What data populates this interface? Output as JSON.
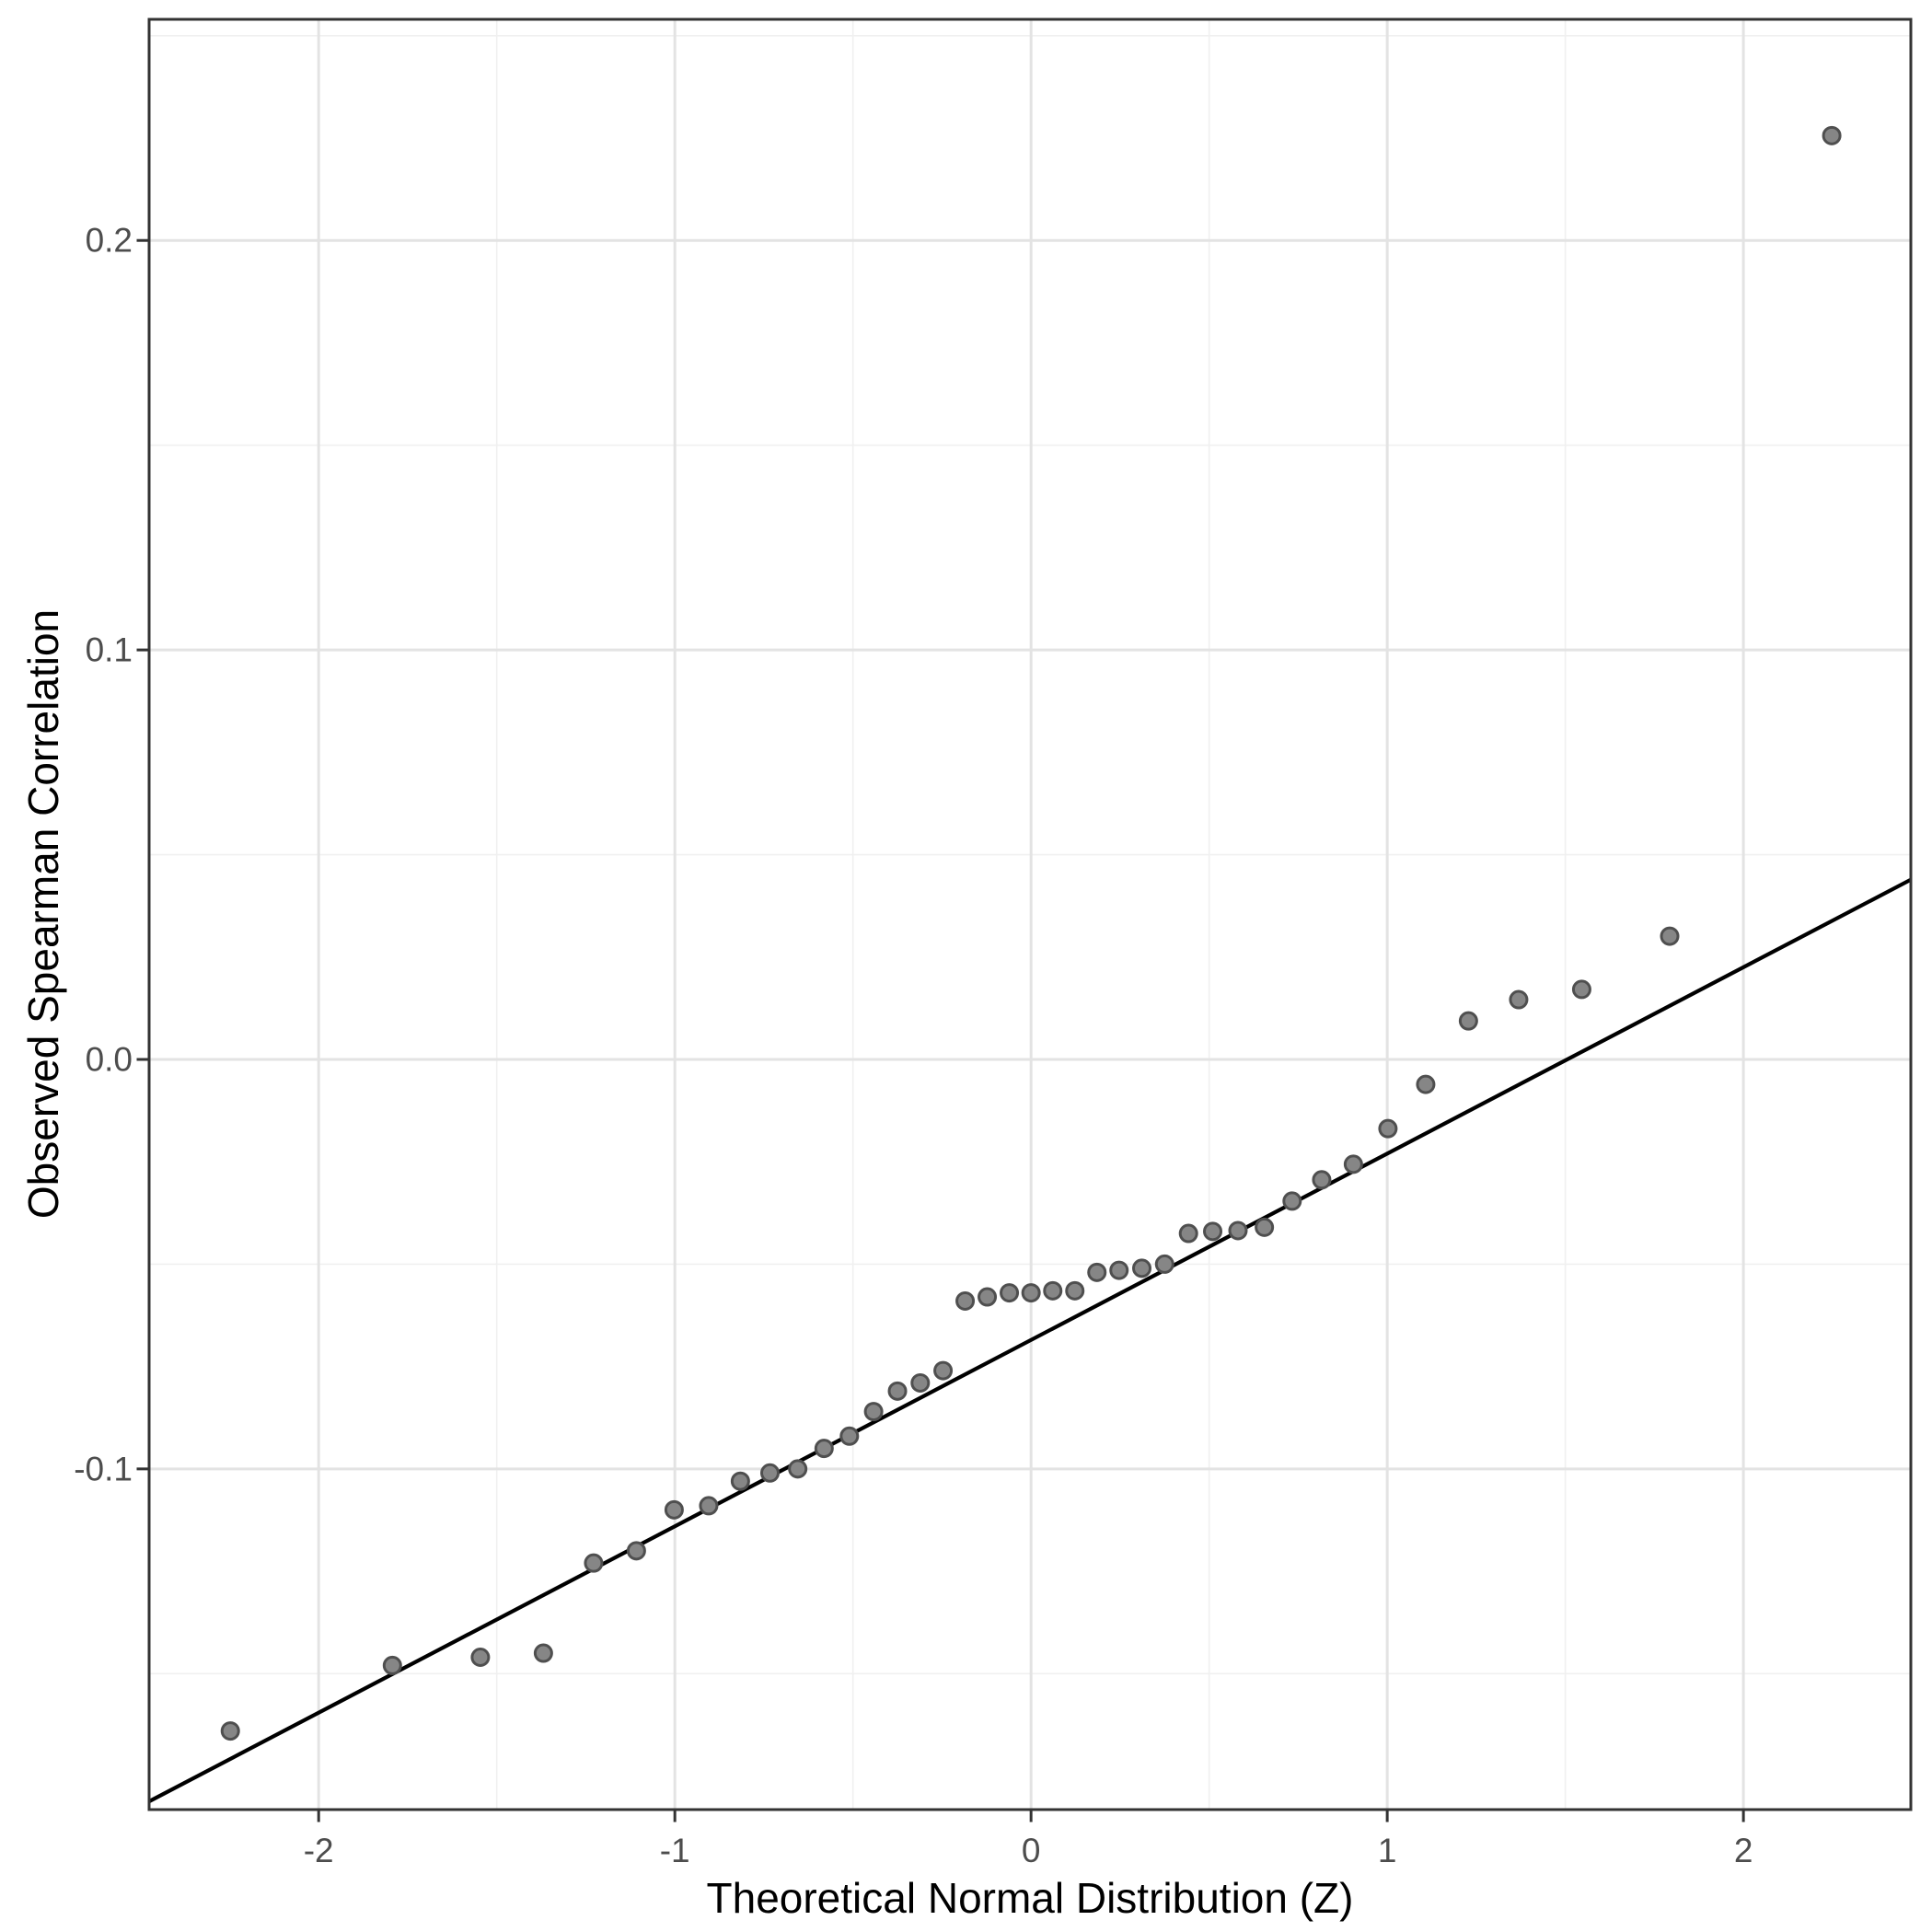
{
  "chart_data": {
    "type": "scatter",
    "title": "",
    "xlabel": "Theoretical Normal Distribution (Z)",
    "ylabel": "Observed Spearman Correlation",
    "xlim": [
      -2.476,
      2.47
    ],
    "ylim": [
      -0.1832,
      0.254
    ],
    "grid": true,
    "legend_position": "none",
    "x_ticks": {
      "values": [
        -2,
        -1,
        0,
        1,
        2
      ],
      "labels": [
        "-2",
        "-1",
        "0",
        "1",
        "2"
      ]
    },
    "y_ticks": {
      "values": [
        0.2,
        0.1,
        0.0,
        -0.1
      ],
      "labels": [
        "0.2",
        "0.1",
        "0.0",
        "-0.1"
      ]
    },
    "x_minor": [
      -1.5,
      -0.5,
      0.5,
      1.5
    ],
    "y_minor": [
      0.25,
      0.15,
      0.05,
      -0.05,
      -0.15
    ],
    "points": [
      [
        -2.248,
        -0.164
      ],
      [
        -1.793,
        -0.148
      ],
      [
        -1.546,
        -0.146
      ],
      [
        -1.369,
        -0.145
      ],
      [
        -1.228,
        -0.123
      ],
      [
        -1.108,
        -0.12
      ],
      [
        -1.002,
        -0.11
      ],
      [
        -0.905,
        -0.109
      ],
      [
        -0.816,
        -0.103
      ],
      [
        -0.733,
        -0.101
      ],
      [
        -0.655,
        -0.1
      ],
      [
        -0.581,
        -0.095
      ],
      [
        -0.51,
        -0.092
      ],
      [
        -0.442,
        -0.086
      ],
      [
        -0.375,
        -0.081
      ],
      [
        -0.311,
        -0.079
      ],
      [
        -0.247,
        -0.076
      ],
      [
        -0.185,
        -0.059
      ],
      [
        -0.123,
        -0.058
      ],
      [
        -0.061,
        -0.057
      ],
      [
        0.0,
        -0.057
      ],
      [
        0.061,
        -0.0565
      ],
      [
        0.123,
        -0.0565
      ],
      [
        0.185,
        -0.052
      ],
      [
        0.247,
        -0.0515
      ],
      [
        0.311,
        -0.051
      ],
      [
        0.375,
        -0.05
      ],
      [
        0.442,
        -0.0425
      ],
      [
        0.51,
        -0.042
      ],
      [
        0.581,
        -0.0418
      ],
      [
        0.655,
        -0.041
      ],
      [
        0.733,
        -0.0346
      ],
      [
        0.816,
        -0.0294
      ],
      [
        0.905,
        -0.0256
      ],
      [
        1.002,
        -0.0169
      ],
      [
        1.108,
        -0.0061
      ],
      [
        1.228,
        0.0094
      ],
      [
        1.369,
        0.0146
      ],
      [
        1.546,
        0.0171
      ],
      [
        1.793,
        0.0301
      ],
      [
        2.248,
        0.2256
      ]
    ],
    "ref_line": {
      "x1": -2.476,
      "y1": -0.1812,
      "x2": 2.47,
      "y2": 0.0439
    },
    "colors": {
      "background": "#FFFFFF",
      "panel_border": "#333333",
      "grid_major": "#E3E3E3",
      "grid_minor": "#F0F0F0",
      "tick_mark": "#333333",
      "tick_label": "#4D4D4D",
      "axis_title": "#000000",
      "point_fill": "#868686",
      "point_stroke": "#4F4F4F",
      "ref_line_color": "#000000"
    }
  }
}
